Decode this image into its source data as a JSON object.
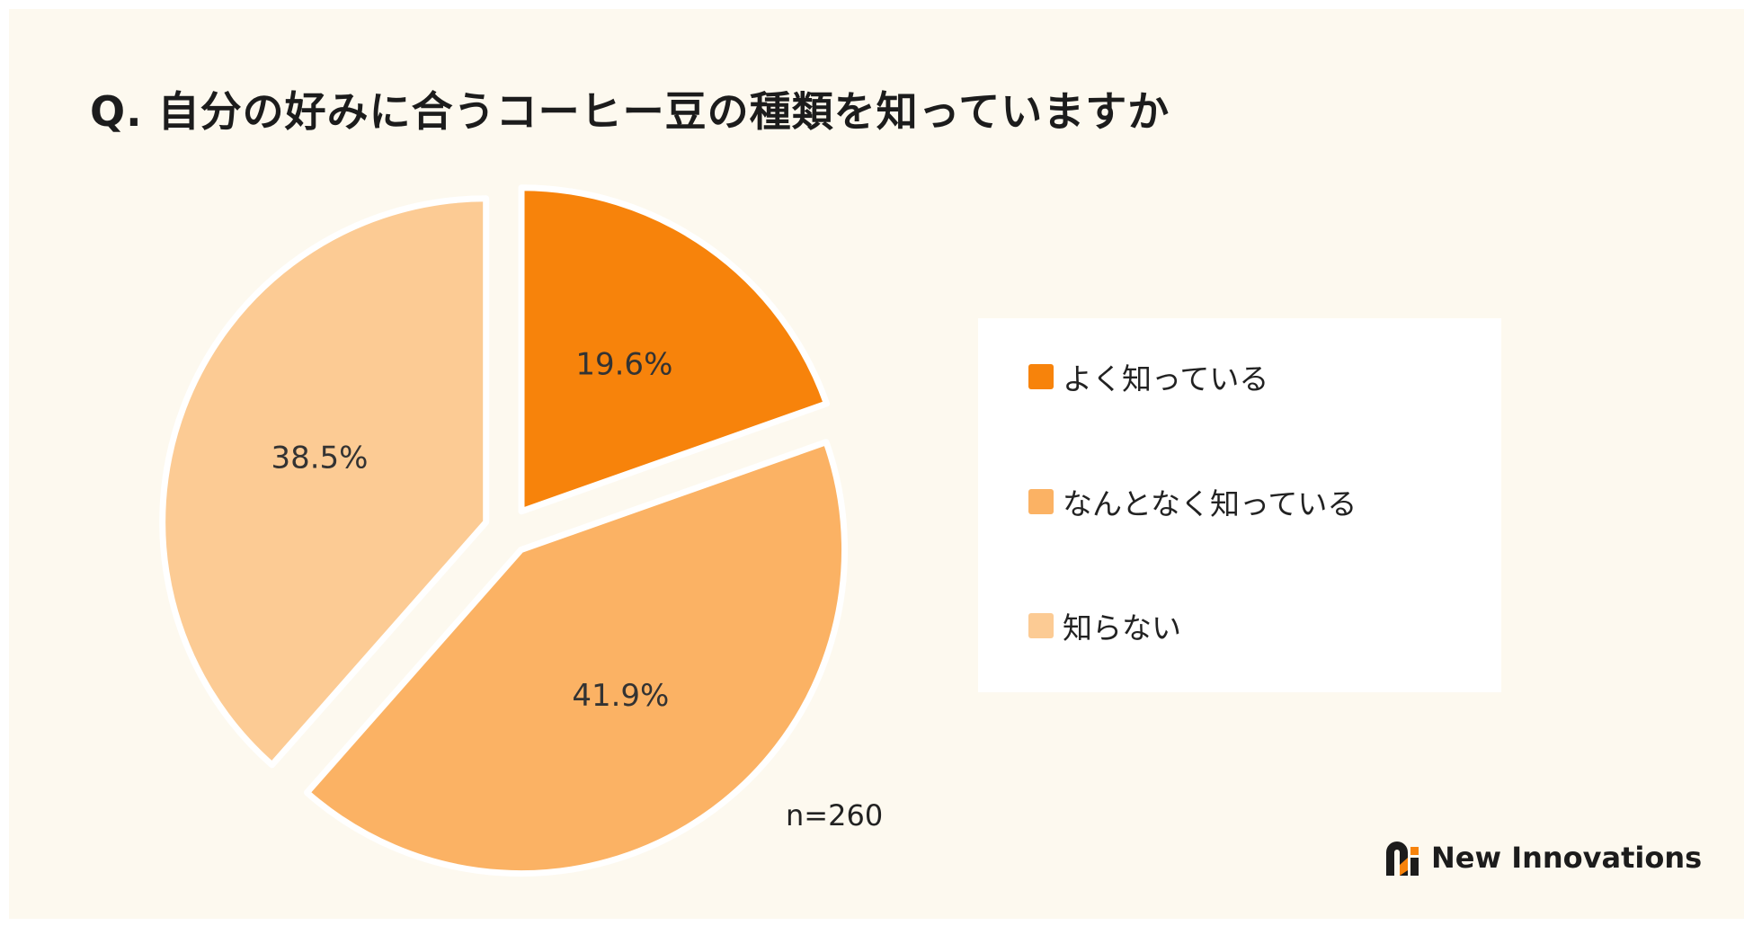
{
  "title": "Q. 自分の好みに合うコーヒー豆の種類を知っていますか",
  "chart_data": {
    "type": "pie",
    "title": "Q. 自分の好みに合うコーヒー豆の種類を知っていますか",
    "slices": [
      {
        "label": "よく知っている",
        "value": 19.6,
        "display": "19.6%",
        "color": "#f7830b"
      },
      {
        "label": "なんとなく知っている",
        "value": 41.9,
        "display": "41.9%",
        "color": "#fbb264"
      },
      {
        "label": "知らない",
        "value": 38.5,
        "display": "38.5%",
        "color": "#fccb94"
      }
    ],
    "legend_position": "right",
    "sample_size": "n=260"
  },
  "brand": {
    "name": "New Innovations",
    "icon": "new-innovations-logo"
  }
}
